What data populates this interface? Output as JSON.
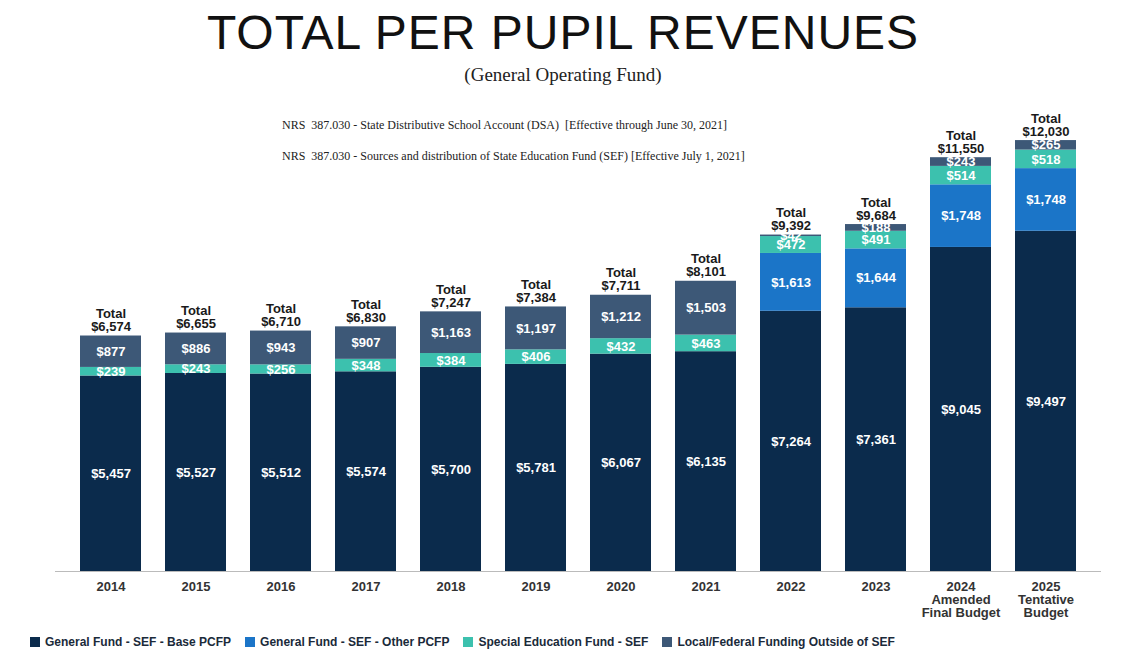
{
  "chart_data": {
    "type": "bar",
    "title": "TOTAL PER PUPIL REVENUES",
    "subtitle": "(General Operating Fund)",
    "notes": [
      "NRS  387.030 - State Distributive School Account (DSA)  [Effective through June 30, 2021]",
      "NRS  387.030 - Sources and distribution of State Education Fund (SEF) [Effective July 1, 2021]"
    ],
    "categories": [
      "2014",
      "2015",
      "2016",
      "2017",
      "2018",
      "2019",
      "2020",
      "2021",
      "2022",
      "2023",
      "2024\nAmended\nFinal Budget",
      "2025\nTentative\nBudget"
    ],
    "series": [
      {
        "name": "General Fund - SEF - Base PCFP",
        "color": "#0b2b4c",
        "values": [
          5457,
          5527,
          5512,
          5574,
          5700,
          5781,
          6067,
          6135,
          7264,
          7361,
          9045,
          9497
        ],
        "value_labels": [
          "$5,457",
          "$5,527",
          "$5,512",
          "$5,574",
          "$5,700",
          "$5,781",
          "$6,067",
          "$6,135",
          "$7,264",
          "$7,361",
          "$9,045",
          "$9,497"
        ]
      },
      {
        "name": "General Fund - SEF - Other PCFP",
        "color": "#1b75c8",
        "values": [
          null,
          null,
          null,
          null,
          null,
          null,
          null,
          null,
          1613,
          1644,
          1748,
          1748
        ],
        "value_labels": [
          null,
          null,
          null,
          null,
          null,
          null,
          null,
          null,
          "$1,613",
          "$1,644",
          "$1,748",
          "$1,748"
        ]
      },
      {
        "name": "Special Education Fund - SEF",
        "color": "#3cc1ae",
        "values": [
          239,
          243,
          256,
          348,
          384,
          406,
          432,
          463,
          472,
          491,
          514,
          518
        ],
        "value_labels": [
          "$239",
          "$243",
          "$256",
          "$348",
          "$384",
          "$406",
          "$432",
          "$463",
          "$472",
          "$491",
          "$514",
          "$518"
        ]
      },
      {
        "name": "Local/Federal Funding Outside of SEF",
        "color": "#3d5877",
        "values": [
          877,
          886,
          943,
          907,
          1163,
          1197,
          1212,
          1503,
          42,
          188,
          243,
          265
        ],
        "value_labels": [
          "$877",
          "$886",
          "$943",
          "$907",
          "$1,163",
          "$1,197",
          "$1,212",
          "$1,503",
          "$42",
          "$188",
          "$243",
          "$265"
        ]
      }
    ],
    "total_text": "Total",
    "totals": [
      6574,
      6655,
      6710,
      6830,
      7247,
      7384,
      7711,
      8101,
      9392,
      9684,
      11550,
      12030
    ],
    "total_labels": [
      "$6,574",
      "$6,655",
      "$6,710",
      "$6,830",
      "$7,247",
      "$7,384",
      "$7,711",
      "$8,101",
      "$9,392",
      "$9,684",
      "$11,550",
      "$12,030"
    ],
    "stacked": true,
    "data_labels": true,
    "ylim": [
      0,
      12030
    ],
    "yticks": [],
    "tick_labels": "x",
    "legend": "bottom",
    "grid": false
  }
}
